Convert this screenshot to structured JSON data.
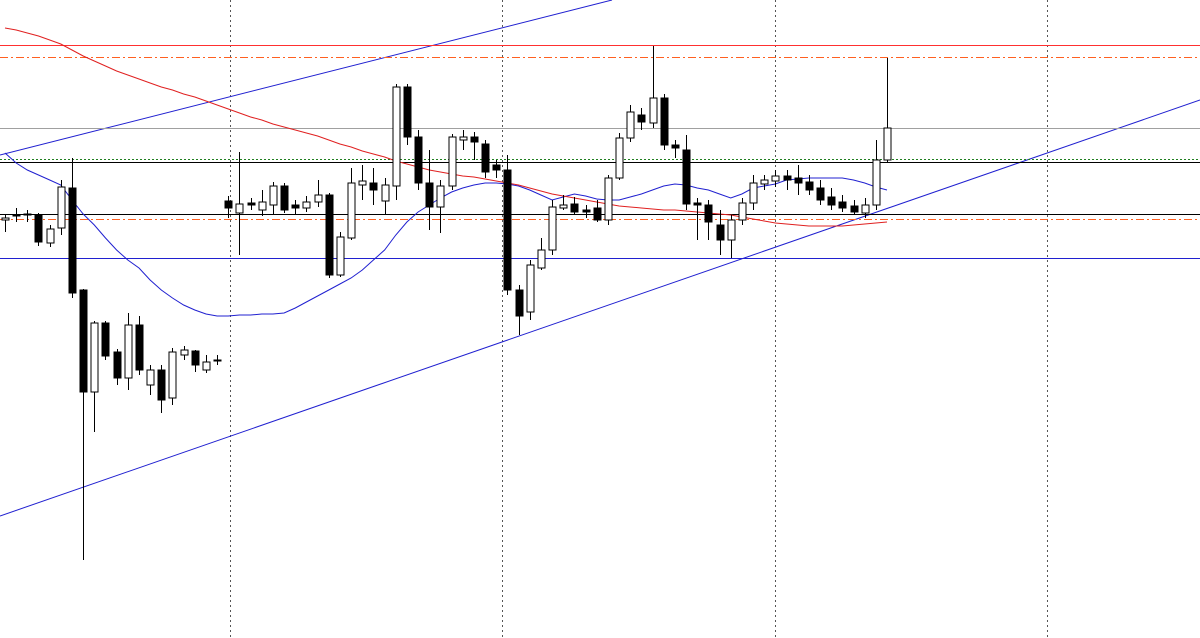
{
  "chart_data": {
    "type": "candlestick",
    "open": [
      418,
      422,
      424,
      423,
      395,
      410,
      450,
      348,
      246,
      315,
      286,
      260,
      313,
      253,
      268,
      240,
      283,
      287,
      268,
      278,
      437,
      425,
      435,
      428,
      433,
      452,
      433,
      430,
      436,
      443,
      363,
      400,
      453,
      455,
      437,
      452,
      551,
      501,
      455,
      431,
      452,
      498,
      501,
      494,
      473,
      468,
      348,
      326,
      370,
      388,
      430,
      434,
      428,
      430,
      418,
      460,
      500,
      523,
      515,
      540,
      493,
      488,
      435,
      433,
      413,
      398,
      418,
      435,
      454,
      457,
      462,
      460,
      456,
      450,
      441,
      436,
      432,
      425,
      433,
      478
    ],
    "high": [
      424,
      430,
      428,
      425,
      413,
      458,
      480,
      349,
      317,
      317,
      289,
      325,
      322,
      273,
      273,
      290,
      292,
      288,
      283,
      283,
      442,
      486,
      440,
      448,
      456,
      455,
      438,
      442,
      458,
      445,
      406,
      470,
      473,
      470,
      460,
      554,
      554,
      508,
      488,
      458,
      504,
      508,
      506,
      498,
      478,
      483,
      353,
      378,
      400,
      438,
      443,
      441,
      433,
      438,
      463,
      505,
      533,
      530,
      592,
      544,
      498,
      503,
      440,
      438,
      428,
      423,
      440,
      463,
      463,
      468,
      468,
      473,
      463,
      458,
      450,
      443,
      438,
      440,
      498,
      580
    ],
    "low": [
      406,
      416,
      416,
      392,
      391,
      403,
      340,
      78,
      206,
      278,
      253,
      248,
      263,
      243,
      225,
      233,
      278,
      266,
      265,
      273,
      420,
      383,
      428,
      422,
      424,
      425,
      424,
      426,
      431,
      360,
      361,
      398,
      438,
      433,
      423,
      438,
      493,
      448,
      408,
      405,
      448,
      488,
      478,
      460,
      460,
      343,
      303,
      318,
      368,
      383,
      428,
      423,
      420,
      416,
      413,
      458,
      496,
      508,
      510,
      488,
      480,
      428,
      398,
      398,
      383,
      380,
      413,
      428,
      448,
      451,
      448,
      443,
      443,
      433,
      428,
      426,
      423,
      420,
      428,
      476
    ],
    "close": [
      420,
      423,
      423,
      396,
      409,
      451,
      345,
      246,
      315,
      282,
      260,
      313,
      268,
      268,
      238,
      286,
      288,
      273,
      276,
      277,
      430,
      434,
      433,
      436,
      452,
      428,
      430,
      436,
      443,
      363,
      401,
      455,
      457,
      448,
      453,
      551,
      501,
      455,
      431,
      452,
      501,
      501,
      496,
      466,
      468,
      348,
      322,
      373,
      388,
      431,
      433,
      426,
      426,
      418,
      460,
      500,
      526,
      516,
      540,
      493,
      490,
      434,
      433,
      416,
      398,
      418,
      435,
      455,
      458,
      462,
      458,
      455,
      448,
      438,
      433,
      430,
      426,
      433,
      478,
      510
    ],
    "up_color": "#ffffff",
    "down_color": "#000000",
    "series": [
      {
        "color": "#2020d0",
        "values": [
          485,
          475,
          468,
          463,
          458,
          453,
          438,
          424,
          413,
          400,
          388,
          378,
          370,
          358,
          348,
          340,
          333,
          328,
          324,
          322,
          322,
          323,
          323,
          324,
          324,
          325,
          330,
          336,
          342,
          348,
          354,
          360,
          368,
          378,
          388,
          403,
          416,
          426,
          433,
          440,
          446,
          450,
          453,
          455,
          455,
          454,
          452,
          448,
          443,
          438,
          441,
          444,
          442,
          439,
          438,
          438,
          441,
          444,
          448,
          452,
          454,
          453,
          450,
          448,
          444,
          440,
          444,
          450,
          452,
          454,
          458,
          459,
          460,
          460,
          460,
          460,
          458,
          455,
          451,
          448
        ]
      },
      {
        "color": "#e02020",
        "values": [
          610,
          608,
          605,
          602,
          598,
          594,
          588,
          582,
          577,
          572,
          567,
          563,
          559,
          555,
          551,
          548,
          544,
          541,
          537,
          533,
          529,
          525,
          521,
          518,
          514,
          511,
          508,
          505,
          502,
          498,
          494,
          491,
          487,
          484,
          481,
          477,
          474,
          471,
          468,
          466,
          464,
          462,
          461,
          459,
          457,
          455,
          453,
          450,
          447,
          444,
          442,
          440,
          438,
          436,
          434,
          432,
          431,
          430,
          429,
          428,
          428,
          427,
          426,
          425,
          424,
          423,
          421,
          419,
          417,
          415,
          414,
          413,
          412,
          412,
          412,
          412,
          413,
          414,
          415,
          416
        ]
      }
    ],
    "levels": [
      {
        "value": 593,
        "color": "#ff3030",
        "style": "solid"
      },
      {
        "value": 581,
        "color": "#ff6020",
        "style": "dashdot"
      },
      {
        "value": 510,
        "color": "#a0a0a0",
        "style": "solid"
      },
      {
        "value": 479,
        "color": "#208020",
        "style": "dotted"
      },
      {
        "value": 476,
        "color": "#000000",
        "style": "solid"
      },
      {
        "value": 424,
        "color": "#000000",
        "style": "solid"
      },
      {
        "value": 419,
        "color": "#ff6020",
        "style": "dashdot"
      },
      {
        "value": 380,
        "color": "#2020d0",
        "style": "solid"
      }
    ],
    "ylim": [
      0,
      638
    ]
  }
}
